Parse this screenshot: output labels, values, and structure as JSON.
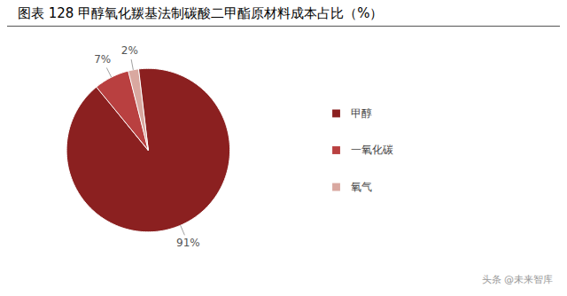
{
  "chart_data": {
    "type": "pie",
    "title": "图表 128  甲醇氧化羰基法制碳酸二甲酯原材料成本占比（%）",
    "categories": [
      "甲醇",
      "一氧化碳",
      "氧气"
    ],
    "values": [
      91,
      7,
      2
    ],
    "value_labels": [
      "91%",
      "7%",
      "2%"
    ],
    "colors": [
      "#8B2020",
      "#B94040",
      "#D9A8A0"
    ],
    "data_labels": true,
    "legend": "right",
    "annotations": [
      "头条 @未来智库"
    ]
  }
}
